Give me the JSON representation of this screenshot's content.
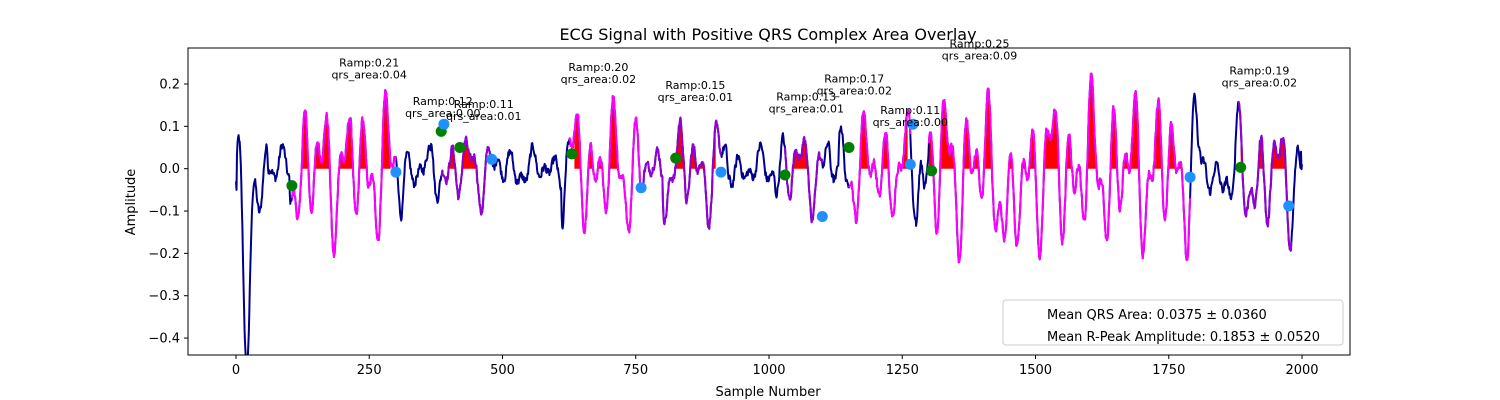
{
  "chart_data": {
    "type": "line",
    "title": "ECG Signal with Positive QRS Complex Area Overlay",
    "xlabel": "Sample Number",
    "ylabel": "Amplitude",
    "xlim": [
      -90,
      2090
    ],
    "ylim": [
      -0.44,
      0.285
    ],
    "xticks": [
      0,
      250,
      500,
      750,
      1000,
      1250,
      1500,
      1750,
      2000
    ],
    "yticks": [
      -0.4,
      -0.3,
      -0.2,
      -0.1,
      0.0,
      0.1,
      0.2
    ],
    "ytick_labels": [
      "−0.4",
      "−0.3",
      "−0.2",
      "−0.1",
      "0.0",
      "0.1",
      "0.2"
    ],
    "grid": false,
    "colors": {
      "signal": "#00008b",
      "qrs_segment_a": "#9400d3",
      "qrs_segment_b": "#ff00ff",
      "area_fill": "#ff0000",
      "onset_marker": "#008000",
      "offset_marker": "#1e90ff"
    },
    "segments": [
      {
        "start": 105,
        "end": 300,
        "color_key": "qrs_segment_b"
      },
      {
        "start": 385,
        "end": 480,
        "color_key": "qrs_segment_a"
      },
      {
        "start": 625,
        "end": 760,
        "color_key": "qrs_segment_b"
      },
      {
        "start": 760,
        "end": 910,
        "color_key": "qrs_segment_a"
      },
      {
        "start": 1030,
        "end": 1100,
        "color_key": "qrs_segment_a"
      },
      {
        "start": 1150,
        "end": 1265,
        "color_key": "qrs_segment_b"
      },
      {
        "start": 1300,
        "end": 1790,
        "color_key": "qrs_segment_b"
      },
      {
        "start": 1880,
        "end": 1980,
        "color_key": "qrs_segment_a"
      }
    ],
    "area_regions": [
      {
        "start": 125,
        "end": 290
      },
      {
        "start": 390,
        "end": 470
      },
      {
        "start": 635,
        "end": 740
      },
      {
        "start": 825,
        "end": 900
      },
      {
        "start": 1035,
        "end": 1090
      },
      {
        "start": 1155,
        "end": 1260
      },
      {
        "start": 1300,
        "end": 1785
      },
      {
        "start": 1885,
        "end": 1975
      }
    ],
    "onset_markers": [
      {
        "x": 105,
        "y": -0.04
      },
      {
        "x": 385,
        "y": 0.088
      },
      {
        "x": 420,
        "y": 0.05
      },
      {
        "x": 630,
        "y": 0.035
      },
      {
        "x": 825,
        "y": 0.025
      },
      {
        "x": 1030,
        "y": -0.015
      },
      {
        "x": 1150,
        "y": 0.05
      },
      {
        "x": 1305,
        "y": -0.005
      },
      {
        "x": 1885,
        "y": 0.003
      }
    ],
    "offset_markers": [
      {
        "x": 300,
        "y": -0.008
      },
      {
        "x": 390,
        "y": 0.105
      },
      {
        "x": 480,
        "y": 0.022
      },
      {
        "x": 760,
        "y": -0.045
      },
      {
        "x": 910,
        "y": -0.008
      },
      {
        "x": 1100,
        "y": -0.113
      },
      {
        "x": 1265,
        "y": 0.01
      },
      {
        "x": 1270,
        "y": 0.105
      },
      {
        "x": 1790,
        "y": -0.02
      },
      {
        "x": 1975,
        "y": -0.088
      }
    ],
    "annotations": [
      {
        "x": 250,
        "y": 0.215,
        "line1": "Ramp:0.21",
        "line2": "qrs_area:0.04"
      },
      {
        "x": 388,
        "y": 0.125,
        "line1": "Ramp:0.12",
        "line2": "qrs_area:0.00"
      },
      {
        "x": 465,
        "y": 0.117,
        "line1": "Ramp:0.11",
        "line2": "qrs_area:0.01"
      },
      {
        "x": 680,
        "y": 0.205,
        "line1": "Ramp:0.20",
        "line2": "qrs_area:0.02"
      },
      {
        "x": 862,
        "y": 0.162,
        "line1": "Ramp:0.15",
        "line2": "qrs_area:0.01"
      },
      {
        "x": 1070,
        "y": 0.135,
        "line1": "Ramp:0.13",
        "line2": "qrs_area:0.01"
      },
      {
        "x": 1160,
        "y": 0.178,
        "line1": "Ramp:0.17",
        "line2": "qrs_area:0.02"
      },
      {
        "x": 1265,
        "y": 0.103,
        "line1": "Ramp:0.11",
        "line2": "qrs_area:0.00"
      },
      {
        "x": 1395,
        "y": 0.26,
        "line1": "Ramp:0.25",
        "line2": "qrs_area:0.09"
      },
      {
        "x": 1920,
        "y": 0.196,
        "line1": "Ramp:0.19",
        "line2": "qrs_area:0.02"
      }
    ],
    "legend": {
      "placement": "lower-right",
      "entries": [
        "Mean QRS Area: 0.0375 ± 0.0360",
        "Mean R-Peak Amplitude: 0.1853 ± 0.0520"
      ]
    }
  }
}
